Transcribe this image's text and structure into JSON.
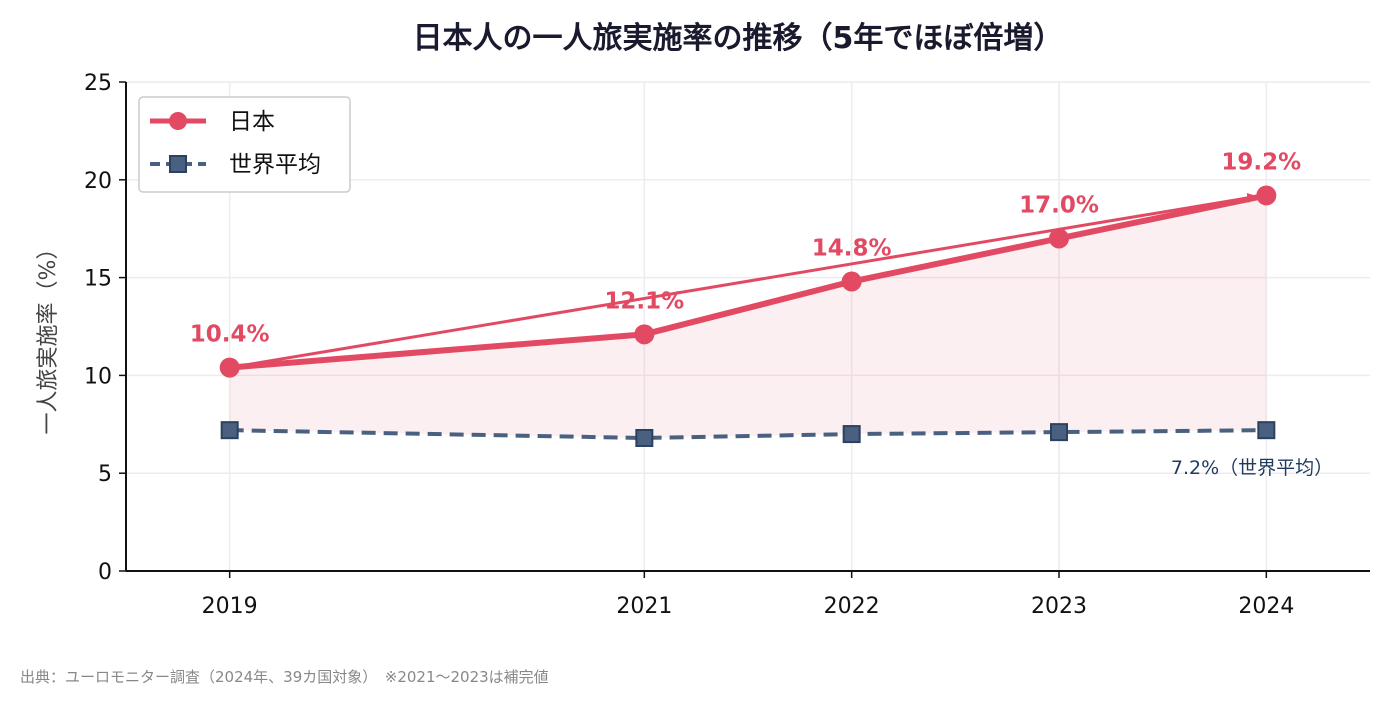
{
  "chart_data": {
    "type": "line",
    "title": "日本人の一人旅実施率の推移（5年でほぼ倍増）",
    "ylabel": "一人旅実施率（%）",
    "xlabel": "",
    "x": [
      2019,
      2021,
      2022,
      2023,
      2024
    ],
    "x_tick_labels": [
      "2019",
      "2021",
      "2022",
      "2023",
      "2024"
    ],
    "xlim": [
      2018.5,
      2024.5
    ],
    "ylim": [
      0,
      25
    ],
    "y_ticks": [
      0,
      5,
      10,
      15,
      20,
      25
    ],
    "y_tick_labels": [
      "0",
      "5",
      "10",
      "15",
      "20",
      "25"
    ],
    "grid": true,
    "legend_position": "top-left",
    "series": [
      {
        "name": "日本",
        "values": [
          10.4,
          12.1,
          14.8,
          17.0,
          19.2
        ],
        "data_labels": [
          "10.4%",
          "12.1%",
          "14.8%",
          "17.0%",
          "19.2%"
        ],
        "color": "#e24a63",
        "marker": "circle",
        "line_style": "solid",
        "fill_to_series": "世界平均"
      },
      {
        "name": "世界平均",
        "values": [
          7.2,
          6.8,
          7.0,
          7.1,
          7.2
        ],
        "color": "#4a6080",
        "marker": "square",
        "line_style": "dashed"
      }
    ],
    "annotations": [
      {
        "text": "7.2%（世界平均）",
        "x": 2024,
        "y": 7.2
      },
      {
        "type": "arrow",
        "from": [
          2019,
          10.4
        ],
        "to": [
          2024,
          19.2
        ],
        "color": "#e24a63"
      }
    ]
  },
  "source_note": "出典：ユーロモニター調査（2024年、39カ国対象）　※2021〜2023は補完値"
}
